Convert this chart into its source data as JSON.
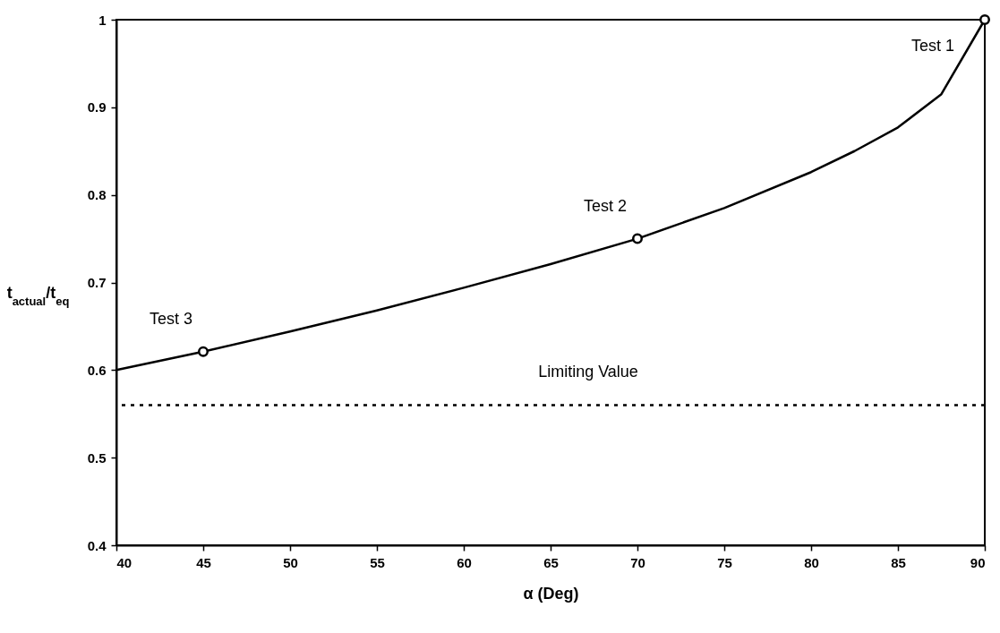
{
  "chart_data": {
    "type": "line",
    "xlabel": "α (Deg)",
    "ylabel": "t$_{actual}$/t$_{eq}$",
    "xlim": [
      40,
      90
    ],
    "xticks": [
      40,
      45,
      50,
      55,
      60,
      65,
      70,
      75,
      80,
      85,
      90
    ],
    "ylim": [
      0.4,
      1
    ],
    "yticks": [
      0.4,
      0.5,
      0.6,
      0.7,
      0.8,
      0.9,
      1
    ],
    "series": [
      {
        "type": "line",
        "color": "#000000",
        "x": [
          40,
          45,
          50,
          55,
          60,
          65,
          70,
          75,
          80,
          82.5,
          85,
          87.5,
          90
        ],
        "values": [
          0.6,
          0.621,
          0.644,
          0.668,
          0.694,
          0.721,
          0.75,
          0.785,
          0.826,
          0.85,
          0.877,
          0.915,
          1
        ]
      },
      {
        "type": "scatter",
        "color": "#000000",
        "marker": "circle",
        "x": [
          45,
          70,
          90
        ],
        "values": [
          0.621,
          0.75,
          1
        ]
      }
    ],
    "ref_lines": [
      {
        "axis": "y",
        "value": 0.56,
        "label": "Limiting Value",
        "color": "#000000",
        "line_style": "dotted"
      }
    ],
    "annotations": [
      {
        "text": "Test 1",
        "x": 90,
        "y": 1
      },
      {
        "text": "Test 2",
        "x": 70,
        "y": 0.75
      },
      {
        "text": "Test 3",
        "x": 45,
        "y": 0.621
      }
    ]
  }
}
